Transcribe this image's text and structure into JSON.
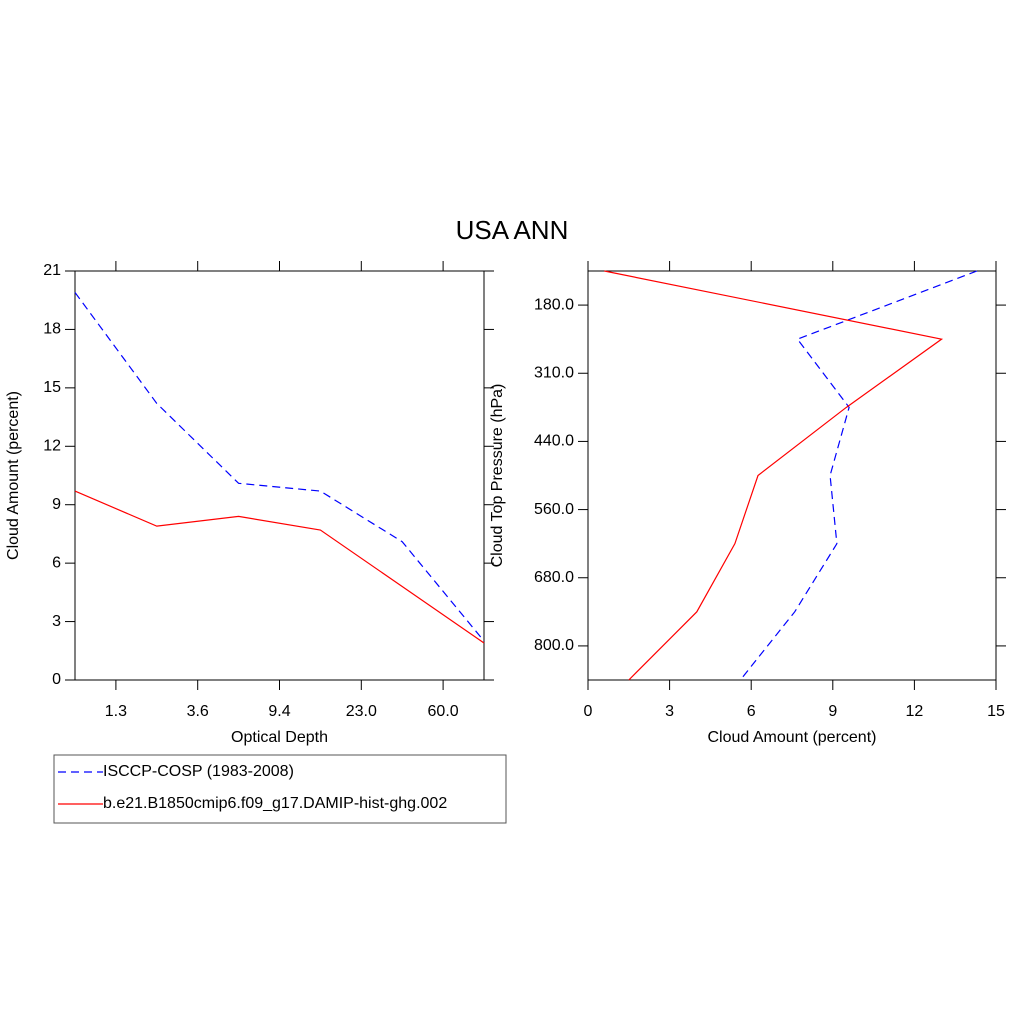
{
  "title": "USA ANN",
  "legend": "bottom-left",
  "chart_data": [
    {
      "type": "line",
      "xlabel": "Optical Depth",
      "ylabel": "Cloud Amount (percent)",
      "x": [
        0,
        1,
        2,
        3,
        4,
        5
      ],
      "xlim": [
        0,
        5
      ],
      "xticks": [
        {
          "value": 0.5,
          "label": "1.3"
        },
        {
          "value": 1.5,
          "label": "3.6"
        },
        {
          "value": 2.5,
          "label": "9.4"
        },
        {
          "value": 3.5,
          "label": "23.0"
        },
        {
          "value": 4.5,
          "label": "60.0"
        }
      ],
      "ylim": [
        0,
        21
      ],
      "yticks": [
        0,
        3,
        6,
        9,
        12,
        15,
        18,
        21
      ],
      "series": [
        {
          "name": "ISCCP-COSP (1983-2008)",
          "color": "#0000ff",
          "style": "dashed",
          "values": [
            19.9,
            14.2,
            10.1,
            9.7,
            7.1,
            2.0
          ]
        },
        {
          "name": "b.e21.B1850cmip6.f09_g17.DAMIP-hist-ghg.002",
          "color": "#ff0000",
          "style": "solid",
          "values": [
            9.7,
            7.9,
            8.4,
            7.7,
            4.8,
            1.9
          ]
        }
      ]
    },
    {
      "type": "line",
      "orientation": "horizontal",
      "xlabel": "Cloud Amount (percent)",
      "ylabel": "Cloud Top Pressure (hPa)",
      "y": [
        0,
        1,
        2,
        3,
        4,
        5,
        6
      ],
      "ylim": [
        6,
        0
      ],
      "yticks": [
        {
          "value": 0.5,
          "label": "180.0"
        },
        {
          "value": 1.5,
          "label": "310.0"
        },
        {
          "value": 2.5,
          "label": "440.0"
        },
        {
          "value": 3.5,
          "label": "560.0"
        },
        {
          "value": 4.5,
          "label": "680.0"
        },
        {
          "value": 5.5,
          "label": "800.0"
        }
      ],
      "xlim": [
        0,
        15
      ],
      "xticks": [
        0,
        3,
        6,
        9,
        12,
        15
      ],
      "series": [
        {
          "color": "#0000ff",
          "style": "dashed",
          "values": [
            14.3,
            7.7,
            9.6,
            8.9,
            9.15,
            7.6,
            5.6
          ]
        },
        {
          "color": "#ff0000",
          "style": "solid",
          "values": [
            0.6,
            13.0,
            9.5,
            6.25,
            5.4,
            4.0,
            1.5
          ]
        }
      ]
    }
  ]
}
